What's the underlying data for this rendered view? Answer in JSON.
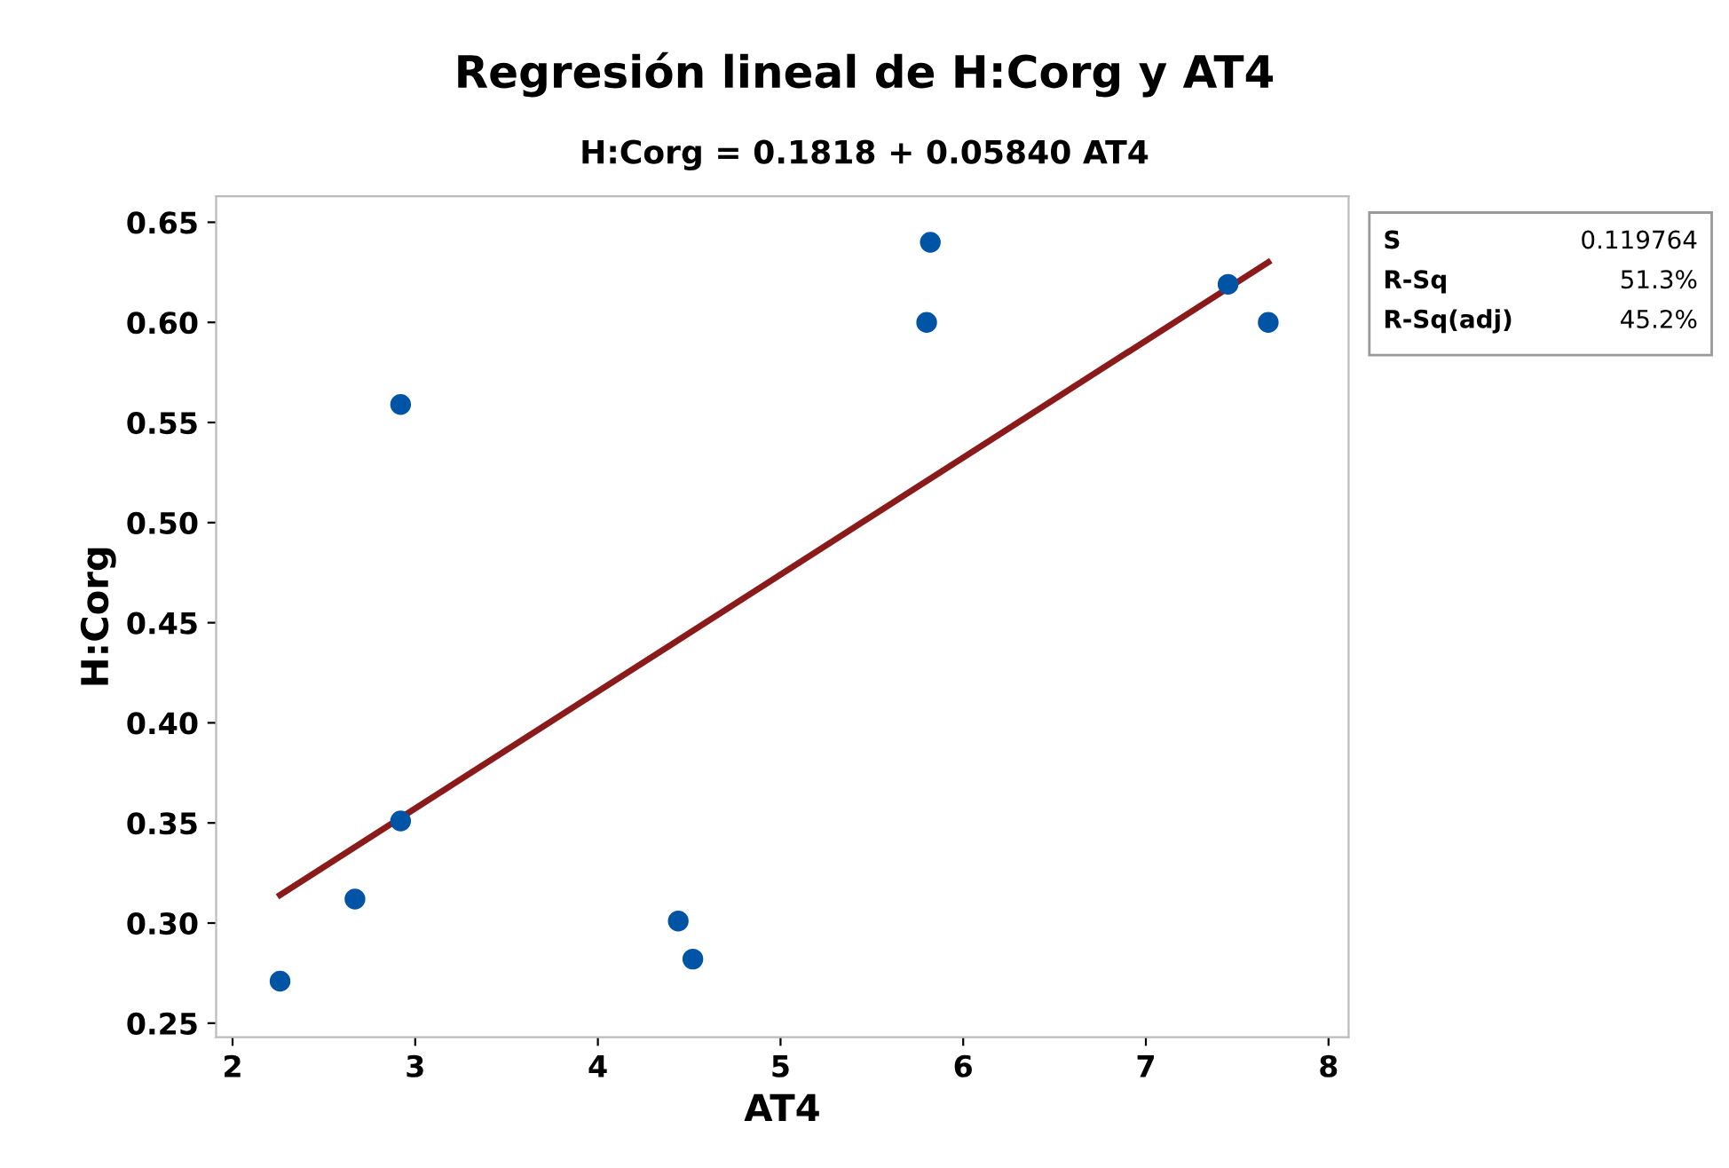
{
  "chart_data": {
    "type": "scatter",
    "title": "Regresión lineal de H:Corg y AT4",
    "subtitle": "H:Corg = 0.1818 + 0.05840 AT4",
    "xlabel": "AT4",
    "ylabel": "H:Corg",
    "xlim": [
      1.91,
      8.11
    ],
    "ylim": [
      0.243,
      0.663
    ],
    "xticks": [
      2,
      3,
      4,
      5,
      6,
      7,
      8
    ],
    "yticks": [
      0.25,
      {
        "value": 0.3,
        "label": "0.30"
      },
      0.35,
      {
        "value": 0.4,
        "label": "0.40"
      },
      0.45,
      {
        "value": 0.5,
        "label": "0.50"
      },
      0.55,
      {
        "value": 0.6,
        "label": "0.60"
      },
      0.65
    ],
    "grid": false,
    "legend": false,
    "series": [
      {
        "marker": "circle",
        "color": "#0054a6",
        "x": [
          2.26,
          2.67,
          2.92,
          2.92,
          4.44,
          4.52,
          5.8,
          5.82,
          7.45,
          7.67
        ],
        "values": [
          0.271,
          0.312,
          0.351,
          0.559,
          0.301,
          0.282,
          0.6,
          0.64,
          0.619,
          0.6
        ]
      },
      {
        "type": "line",
        "marker": "none",
        "color": "#8b1a1a",
        "line_style": "solid",
        "x": [
          2.26,
          7.67
        ],
        "values": [
          0.314,
          0.63
        ]
      }
    ],
    "annotations": [
      "S",
      "0.119764",
      "R-Sq",
      "51.3%",
      "R-Sq(adj)",
      "45.2%"
    ]
  }
}
